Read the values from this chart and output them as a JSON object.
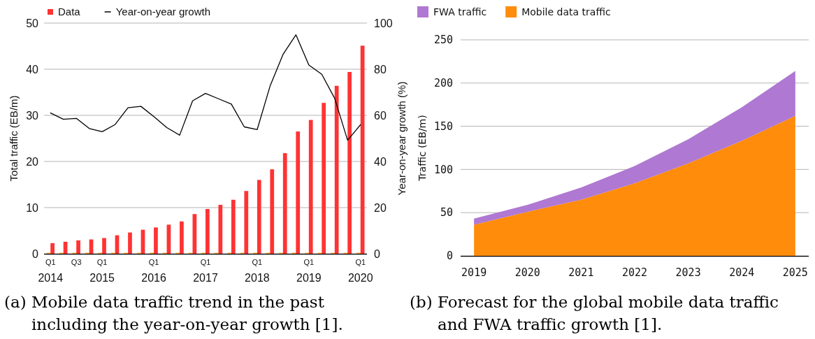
{
  "chart_data": [
    {
      "type": "bar",
      "categories": [
        "Q1\n2014",
        null,
        "Q3",
        null,
        "Q1\n2015",
        null,
        null,
        null,
        "Q1\n2016",
        null,
        null,
        null,
        "Q1\n2017",
        null,
        null,
        null,
        "Q1\n2018",
        null,
        null,
        null,
        "Q1\n2019",
        null,
        null,
        null,
        "Q1\n2020"
      ],
      "series": [
        {
          "color": "#ff9a1a",
          "values": [
            0.2,
            0.2,
            0.2,
            0.2,
            0.2,
            0.2,
            0.2,
            0.2,
            0.2,
            0.2,
            0.2,
            0.2,
            0.2,
            0.2,
            0.2,
            0.2,
            0.2,
            0.2,
            0.2,
            0.2,
            0.2,
            0.2,
            0.2,
            0.2,
            0.2
          ]
        },
        {
          "name": "Data",
          "color": "#ff3333",
          "values": [
            2.3,
            2.6,
            2.9,
            3.1,
            3.4,
            4.0,
            4.6,
            5.2,
            5.7,
            6.3,
            7.0,
            8.6,
            9.7,
            10.6,
            11.7,
            13.6,
            16.0,
            18.3,
            21.8,
            26.5,
            29.0,
            32.7,
            36.4,
            39.4,
            45.1
          ]
        },
        {
          "name": "Year-on-year growth",
          "type": "line",
          "axis": "y2",
          "color": "#000000",
          "values": [
            61.0,
            58.3,
            58.7,
            54.3,
            52.9,
            56.0,
            63.3,
            63.9,
            59.5,
            54.7,
            51.4,
            66.3,
            69.5,
            67.2,
            64.9,
            55.0,
            53.8,
            72.7,
            86.4,
            94.9,
            81.8,
            77.8,
            67.4,
            49.2,
            55.9
          ]
        }
      ],
      "ylabel": "Total traffic (EB/m)",
      "y2label": "Year-on-year growth (%)",
      "ylim": [
        0,
        50
      ],
      "yticks": [
        0,
        10,
        20,
        30,
        40,
        50
      ],
      "y2lim": [
        0,
        100
      ],
      "y2ticks": [
        0,
        20,
        40,
        60,
        80,
        100
      ],
      "grid": "y",
      "legend": "top left",
      "annotations": [
        "(a) Mobile data traffic trend in the past including the year-on-year growth [1]."
      ]
    },
    {
      "type": "area",
      "stacked": true,
      "categories": [
        "2019",
        "2020",
        "2021",
        "2022",
        "2023",
        "2024",
        "2025"
      ],
      "series": [
        {
          "name": "Mobile data traffic",
          "color": "#ff8c0a",
          "values": [
            36,
            51,
            65,
            84,
            107,
            133,
            162
          ]
        },
        {
          "name": "FWA traffic",
          "color": "#af78d2",
          "values": [
            7,
            8,
            14,
            20,
            28,
            39,
            52
          ]
        }
      ],
      "ylabel": "Traffic (EB/m)",
      "ylim": [
        0,
        250
      ],
      "yticks": [
        0,
        50,
        100,
        150,
        200,
        250
      ],
      "grid": "y",
      "legend": "top left",
      "annotations": [
        "(b) Forecast for the global mobile data traffic and FWA traffic growth [1]."
      ]
    }
  ]
}
